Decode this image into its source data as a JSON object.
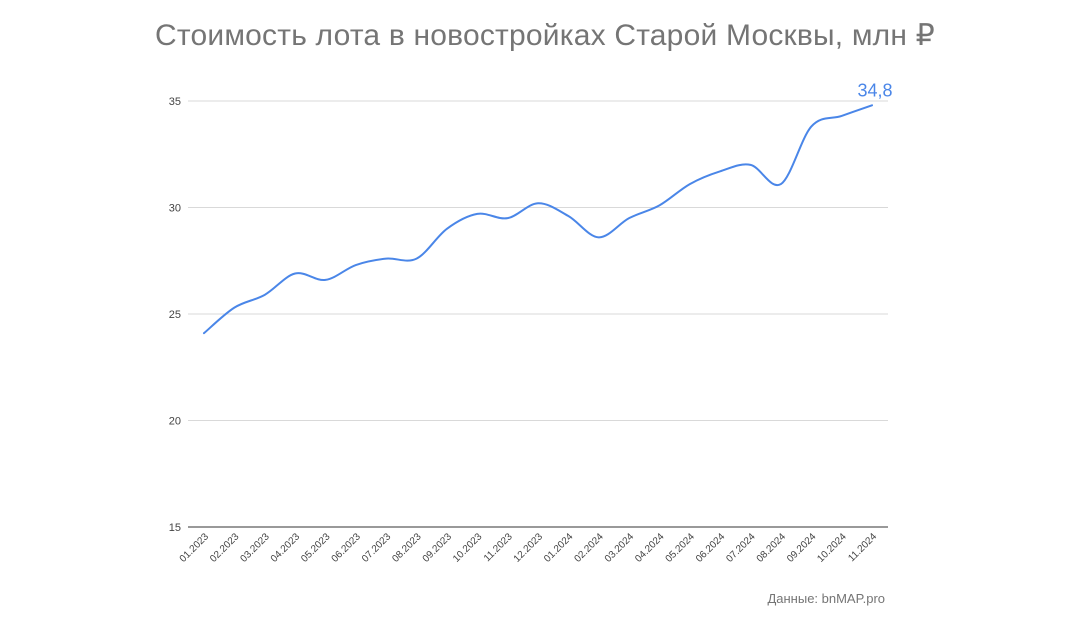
{
  "chart_data": {
    "type": "line",
    "title": "Стоимость лота в новостройках Старой Москвы, млн ₽",
    "xlabel": "",
    "ylabel": "",
    "ylim": [
      15,
      35
    ],
    "y_ticks": [
      "15",
      "20",
      "25",
      "30",
      "35"
    ],
    "grid": true,
    "legend": "none",
    "categories": [
      "01.2023",
      "02.2023",
      "03.2023",
      "04.2023",
      "05.2023",
      "06.2023",
      "07.2023",
      "08.2023",
      "09.2023",
      "10.2023",
      "11.2023",
      "12.2023",
      "01.2024",
      "02.2024",
      "03.2024",
      "04.2024",
      "05.2024",
      "06.2024",
      "07.2024",
      "08.2024",
      "09.2024",
      "10.2024",
      "11.2024"
    ],
    "series": [
      {
        "color": "#4a86e8",
        "values": [
          24.1,
          25.3,
          25.9,
          26.9,
          26.6,
          27.3,
          27.6,
          27.6,
          29.0,
          29.7,
          29.5,
          30.2,
          29.6,
          28.6,
          29.5,
          30.1,
          31.1,
          31.7,
          32.0,
          31.1,
          33.8,
          34.3,
          34.8
        ]
      }
    ],
    "annotation": "34,8",
    "source": "Данные: bnMAP.pro",
    "line_color": "#4a86e8",
    "grid_color": "#d9d9d9"
  }
}
